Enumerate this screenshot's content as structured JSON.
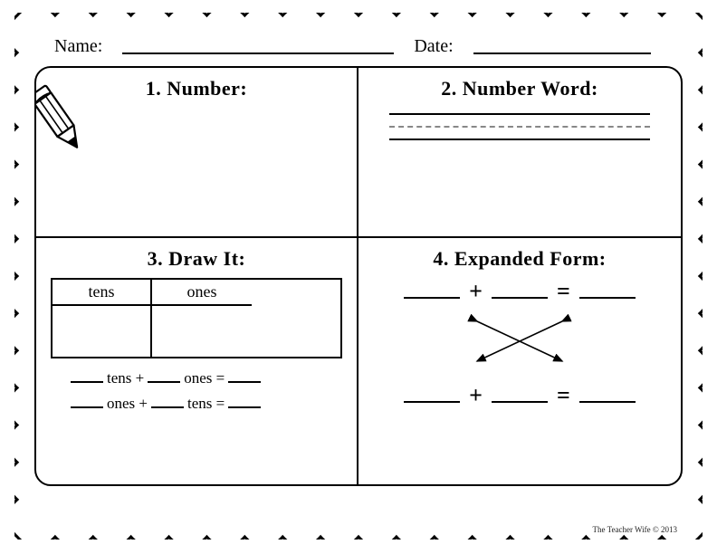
{
  "header": {
    "name_label": "Name:",
    "date_label": "Date:",
    "name_line_width": 300,
    "date_line_width": 200
  },
  "boxes": {
    "q1": {
      "title": "1. Number:"
    },
    "q2": {
      "title": "2. Number Word:"
    },
    "q3": {
      "title": "3. Draw It:",
      "col1": "tens",
      "col2": "ones",
      "line1_a": "tens +",
      "line1_b": "ones =",
      "line2_a": "ones +",
      "line2_b": "tens ="
    },
    "q4": {
      "title": "4. Expanded Form:",
      "plus": "+",
      "equals": "="
    }
  },
  "credit": "The Teacher Wife © 2013",
  "style": {
    "border_color": "#000000",
    "scallop_count_h": 18,
    "scallop_count_v": 14,
    "scallop_stroke": 3
  }
}
